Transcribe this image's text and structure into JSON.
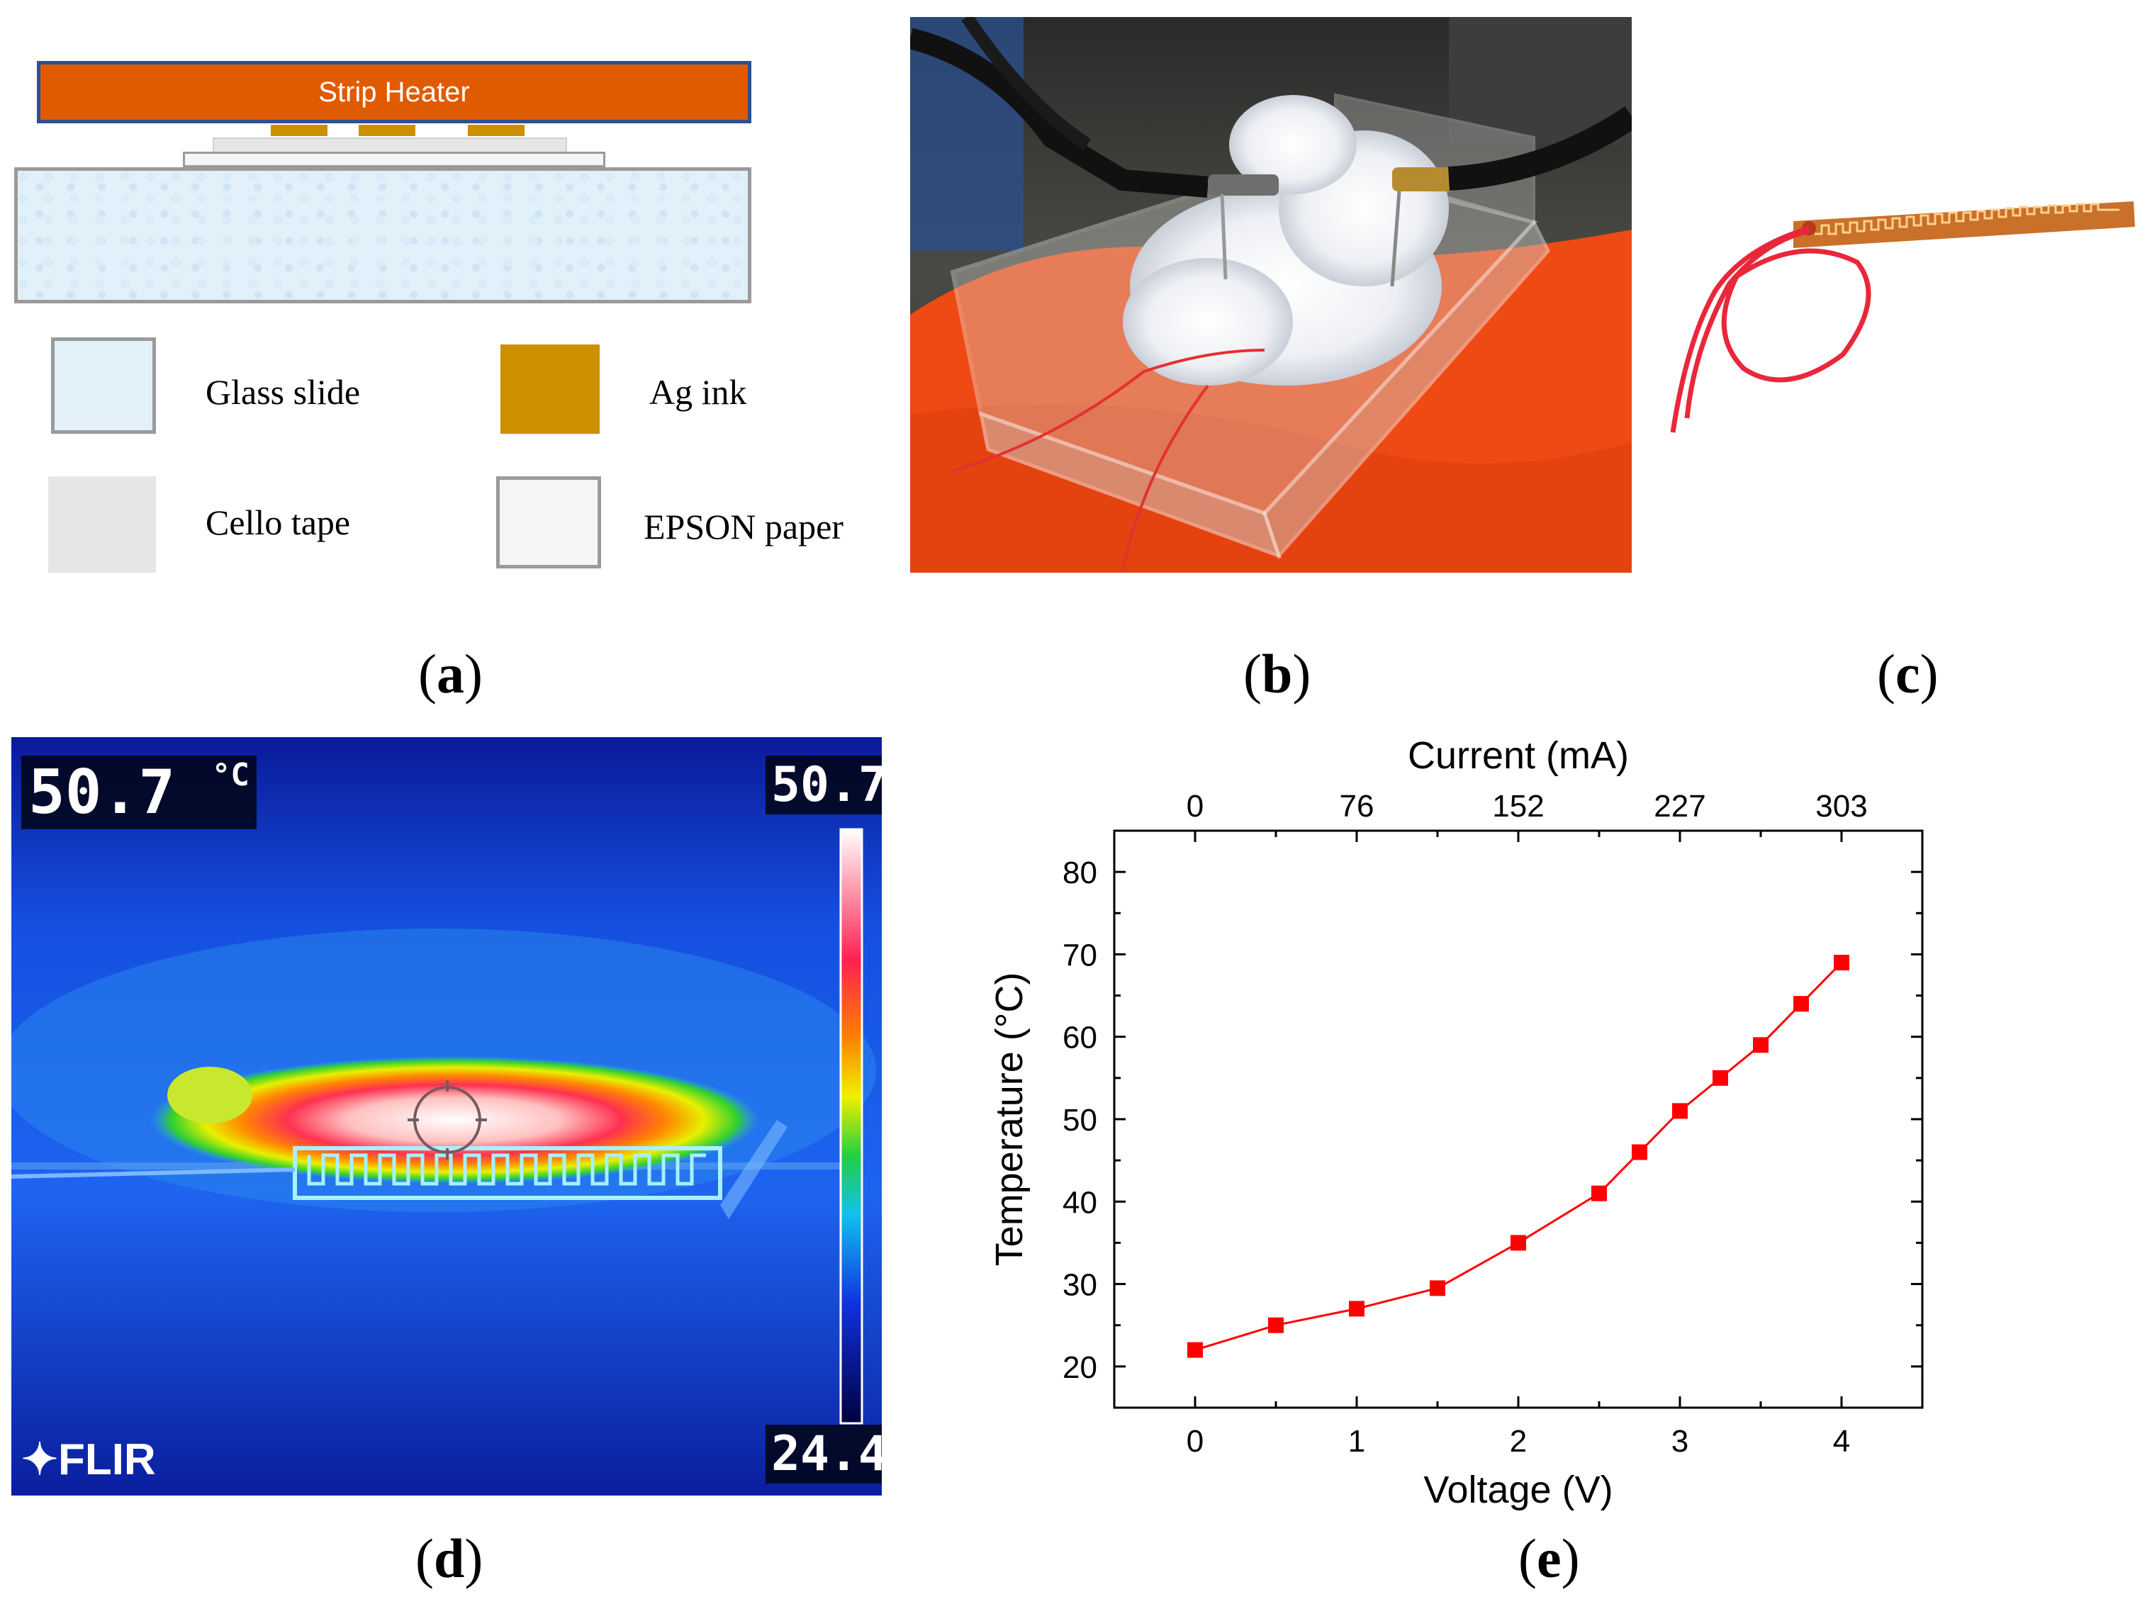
{
  "panel_a": {
    "heater_label": "Strip Heater",
    "legend": [
      {
        "label": "Glass slide",
        "color": "#e2f0fa"
      },
      {
        "label": "Ag ink",
        "color": "#cc8f00"
      },
      {
        "label": "Cello tape",
        "color": "#e6e6e6"
      },
      {
        "label": "EPSON paper",
        "color": "#f5f5f5"
      }
    ]
  },
  "labels": {
    "a": "a",
    "b": "b",
    "c": "c",
    "d": "d",
    "e": "e"
  },
  "thermal": {
    "spot_temp": "50.7",
    "spot_unit": "°C",
    "scale_max": "50.7",
    "scale_min": "24.4",
    "brand": "FLIR"
  },
  "chart_data": {
    "type": "line",
    "xlabel": "Voltage (V)",
    "x2label": "Current (mA)",
    "ylabel": "Temperature (°C)",
    "xlim": [
      -0.5,
      4.5
    ],
    "ylim": [
      15,
      85
    ],
    "x_ticks": [
      0,
      1,
      2,
      3,
      4
    ],
    "y_ticks": [
      20,
      30,
      40,
      50,
      60,
      70,
      80
    ],
    "x2_ticks": [
      "0",
      "76",
      "152",
      "227",
      "303"
    ],
    "grid": false,
    "series": [
      {
        "color": "#ff0000",
        "x": [
          0,
          0.5,
          1,
          1.5,
          2,
          2.5,
          2.75,
          3,
          3.25,
          3.5,
          3.75,
          4
        ],
        "y": [
          22,
          25,
          27,
          29.5,
          35,
          41,
          46,
          51,
          55,
          59,
          64,
          69
        ]
      }
    ]
  }
}
